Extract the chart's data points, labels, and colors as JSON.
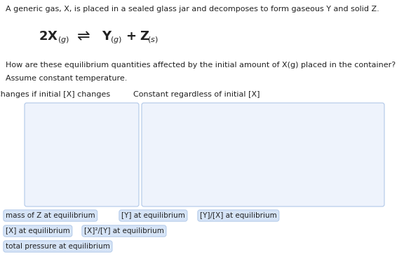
{
  "background_color": "#ffffff",
  "title_text": "A generic gas, X, is placed in a sealed glass jar and decomposes to form gaseous Y and solid Z.",
  "question_line1": "How are these equilibrium quantities affected by the initial amount of X(g) placed in the container?",
  "question_line2": "Assume constant temperature.",
  "col1_header": "Changes if initial [X] changes",
  "col2_header": "Constant regardless of initial [X]",
  "box_color": "#eef3fc",
  "box_border_color": "#b0c8e8",
  "button_bg": "#d6e4f7",
  "button_border": "#b0c8e8",
  "buttons_row1": [
    "mass of Z at equilibrium",
    "[Y] at equilibrium",
    "[Y]/[X] at equilibrium"
  ],
  "buttons_row2": [
    "[X] at equilibrium",
    "[X]²/[Y] at equilibrium"
  ],
  "buttons_row3": [
    "total pressure at equilibrium"
  ],
  "font_color": "#222222",
  "title_fontsize": 8.0,
  "question_fontsize": 8.0,
  "header_fontsize": 8.0,
  "button_fontsize": 7.5,
  "eq_fontsize": 13
}
